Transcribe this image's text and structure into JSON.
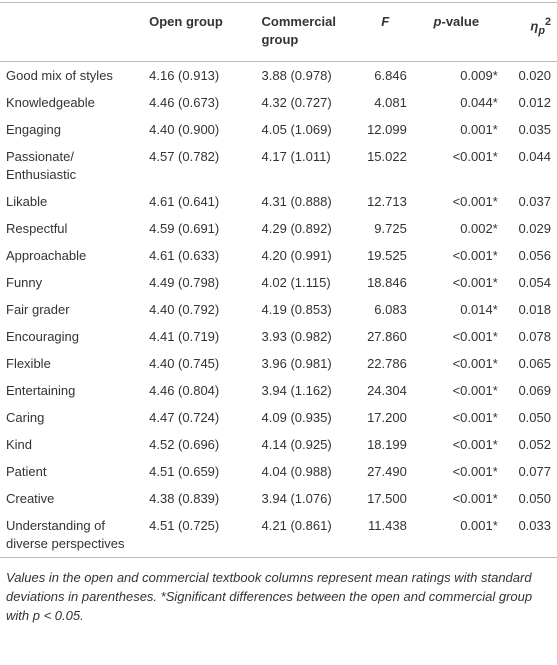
{
  "table": {
    "header": [
      {
        "text": ""
      },
      {
        "text": "Open group"
      },
      {
        "text": "Commercial group"
      },
      {
        "text": "F"
      },
      {
        "italic": "p",
        "rest": "-value"
      },
      {
        "base": "η",
        "sub": "p",
        "sup": "2"
      }
    ],
    "rows": [
      [
        "Good mix of styles",
        "4.16 (0.913)",
        "3.88 (0.978)",
        "6.846",
        "0.009*",
        "0.020"
      ],
      [
        "Knowledgeable",
        "4.46 (0.673)",
        "4.32 (0.727)",
        "4.081",
        "0.044*",
        "0.012"
      ],
      [
        "Engaging",
        "4.40 (0.900)",
        "4.05 (1.069)",
        "12.099",
        "0.001*",
        "0.035"
      ],
      [
        "Passionate/ Enthusiastic",
        "4.57 (0.782)",
        "4.17 (1.011)",
        "15.022",
        "<0.001*",
        "0.044"
      ],
      [
        "Likable",
        "4.61 (0.641)",
        "4.31 (0.888)",
        "12.713",
        "<0.001*",
        "0.037"
      ],
      [
        "Respectful",
        "4.59 (0.691)",
        "4.29 (0.892)",
        "9.725",
        "0.002*",
        "0.029"
      ],
      [
        "Approachable",
        "4.61 (0.633)",
        "4.20 (0.991)",
        "19.525",
        "<0.001*",
        "0.056"
      ],
      [
        "Funny",
        "4.49 (0.798)",
        "4.02 (1.115)",
        "18.846",
        "<0.001*",
        "0.054"
      ],
      [
        "Fair grader",
        "4.40 (0.792)",
        "4.19 (0.853)",
        "6.083",
        "0.014*",
        "0.018"
      ],
      [
        "Encouraging",
        "4.41 (0.719)",
        "3.93 (0.982)",
        "27.860",
        "<0.001*",
        "0.078"
      ],
      [
        "Flexible",
        "4.40 (0.745)",
        "3.96 (0.981)",
        "22.786",
        "<0.001*",
        "0.065"
      ],
      [
        "Entertaining",
        "4.46 (0.804)",
        "3.94 (1.162)",
        "24.304",
        "<0.001*",
        "0.069"
      ],
      [
        "Caring",
        "4.47 (0.724)",
        "4.09 (0.935)",
        "17.200",
        "<0.001*",
        "0.050"
      ],
      [
        "Kind",
        "4.52 (0.696)",
        "4.14 (0.925)",
        "18.199",
        "<0.001*",
        "0.052"
      ],
      [
        "Patient",
        "4.51 (0.659)",
        "4.04 (0.988)",
        "27.490",
        "<0.001*",
        "0.077"
      ],
      [
        "Creative",
        "4.38 (0.839)",
        "3.94 (1.076)",
        "17.500",
        "<0.001*",
        "0.050"
      ],
      [
        "Understanding of diverse perspectives",
        "4.51 (0.725)",
        "4.21 (0.861)",
        "11.438",
        "0.001*",
        "0.033"
      ]
    ],
    "footnote": "Values in the open and commercial textbook columns represent mean ratings with standard deviations in parentheses. *Significant differences between the open and commercial group with p < 0.05."
  }
}
